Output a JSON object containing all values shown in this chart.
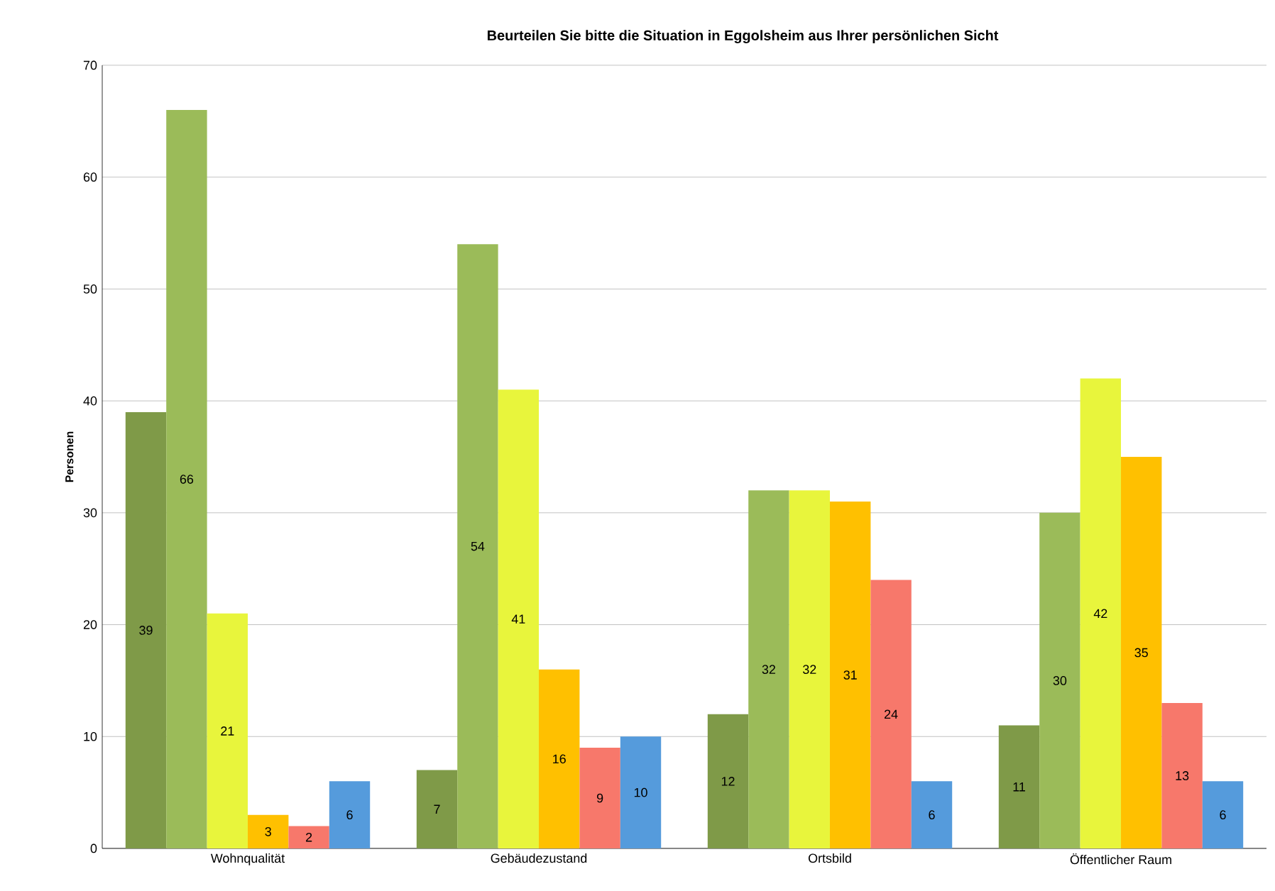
{
  "chart_data": {
    "type": "bar",
    "title": "Beurteilen Sie bitte die Situation in Eggolsheim aus Ihrer persönlichen Sicht",
    "ylabel": "Personen",
    "categories": [
      "Wohnqualität",
      "Gebäudezustand",
      "Ortsbild",
      "Öffentlicher Raum"
    ],
    "series": [
      {
        "color": "#7f9a48",
        "values": [
          39,
          7,
          12,
          11
        ]
      },
      {
        "color": "#9bbb59",
        "values": [
          66,
          54,
          32,
          30
        ]
      },
      {
        "color": "#e8f53c",
        "values": [
          21,
          41,
          32,
          42
        ]
      },
      {
        "color": "#ffc000",
        "values": [
          3,
          16,
          31,
          35
        ]
      },
      {
        "color": "#f7786b",
        "values": [
          2,
          9,
          24,
          13
        ]
      },
      {
        "color": "#559bdc",
        "values": [
          6,
          10,
          6,
          6
        ]
      }
    ],
    "ylim": [
      0,
      70
    ],
    "yticks": [
      0,
      10,
      20,
      30,
      40,
      50,
      60,
      70
    ],
    "grid": "y",
    "data_labels": true
  }
}
